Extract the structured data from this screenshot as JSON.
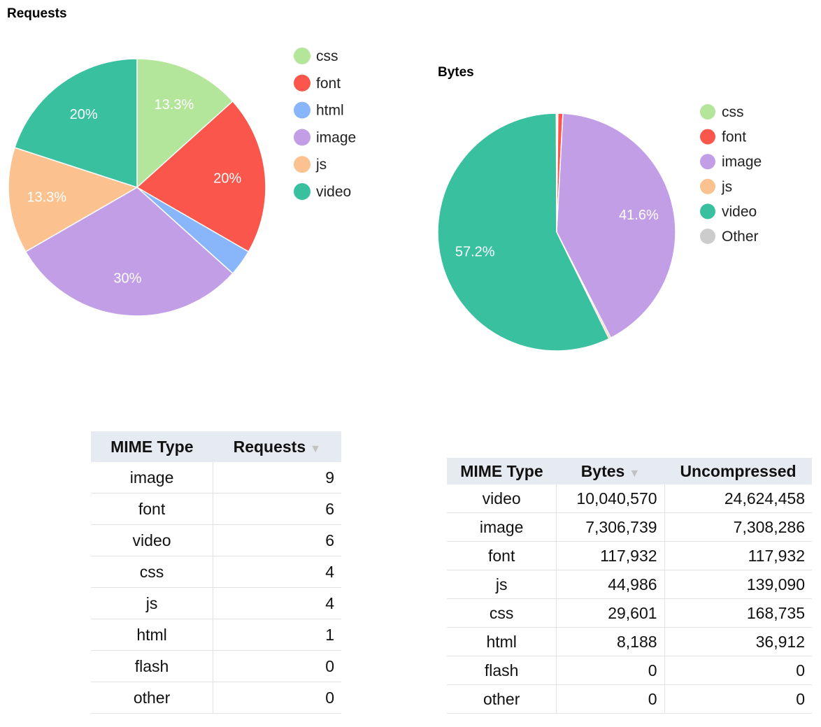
{
  "chart_data": [
    {
      "type": "pie",
      "title": "Requests",
      "legend": [
        "css",
        "font",
        "html",
        "image",
        "js",
        "video"
      ],
      "legend_position": "right",
      "slices": [
        {
          "name": "css",
          "value": 4,
          "label": "13.3%",
          "color": "#b3e59a"
        },
        {
          "name": "font",
          "value": 6,
          "label": "20%",
          "color": "#fa564c"
        },
        {
          "name": "html",
          "value": 1,
          "label": "",
          "color": "#89b6fa"
        },
        {
          "name": "image",
          "value": 9,
          "label": "30%",
          "color": "#c19ee6"
        },
        {
          "name": "js",
          "value": 4,
          "label": "13.3%",
          "color": "#fbc28f"
        },
        {
          "name": "video",
          "value": 6,
          "label": "20%",
          "color": "#39c09f"
        }
      ]
    },
    {
      "type": "pie",
      "title": "Bytes",
      "legend": [
        "css",
        "font",
        "image",
        "js",
        "video",
        "Other"
      ],
      "legend_position": "right",
      "slices": [
        {
          "name": "css",
          "value": 29601,
          "label": "",
          "color": "#b3e59a"
        },
        {
          "name": "font",
          "value": 117932,
          "label": "",
          "color": "#fa564c"
        },
        {
          "name": "image",
          "value": 7306739,
          "label": "41.6%",
          "color": "#c19ee6"
        },
        {
          "name": "js",
          "value": 44986,
          "label": "",
          "color": "#fbc28f"
        },
        {
          "name": "video",
          "value": 10040570,
          "label": "57.2%",
          "color": "#39c09f"
        },
        {
          "name": "Other",
          "value": 8188,
          "label": "",
          "color": "#cccccc"
        }
      ]
    }
  ],
  "requests_table": {
    "headers": [
      "MIME Type",
      "Requests"
    ],
    "sort_icon": "sort-desc-icon",
    "rows": [
      [
        "image",
        "9"
      ],
      [
        "font",
        "6"
      ],
      [
        "video",
        "6"
      ],
      [
        "css",
        "4"
      ],
      [
        "js",
        "4"
      ],
      [
        "html",
        "1"
      ],
      [
        "flash",
        "0"
      ],
      [
        "other",
        "0"
      ]
    ]
  },
  "bytes_table": {
    "headers": [
      "MIME Type",
      "Bytes",
      "Uncompressed"
    ],
    "sort_icon": "sort-desc-icon",
    "rows": [
      [
        "video",
        "10,040,570",
        "24,624,458"
      ],
      [
        "image",
        "7,306,739",
        "7,308,286"
      ],
      [
        "font",
        "117,932",
        "117,932"
      ],
      [
        "js",
        "44,986",
        "139,090"
      ],
      [
        "css",
        "29,601",
        "168,735"
      ],
      [
        "html",
        "8,188",
        "36,912"
      ],
      [
        "flash",
        "0",
        "0"
      ],
      [
        "other",
        "0",
        "0"
      ]
    ]
  }
}
